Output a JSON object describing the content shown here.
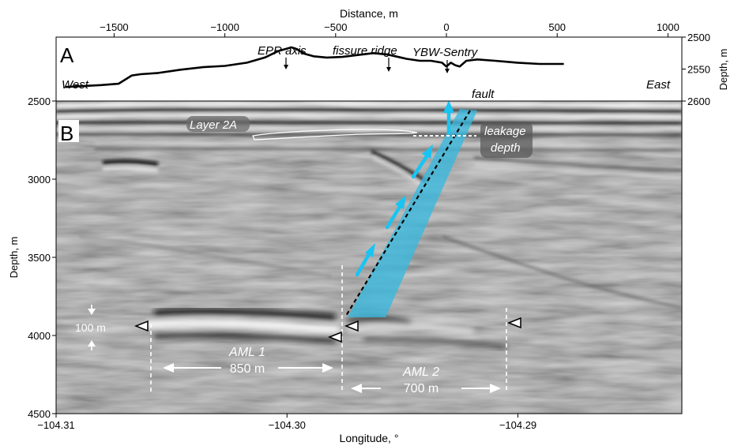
{
  "panel_a": {
    "letter": "A",
    "top_axis_label": "Distance, m",
    "right_axis_label": "Depth, m",
    "distance_ticks": [
      "−1500",
      "−1000",
      "−500",
      "0",
      "500",
      "1000"
    ],
    "distance_tick_values": [
      -1500,
      -1000,
      -500,
      0,
      500,
      1000
    ],
    "depth_ticks": [
      "2500",
      "2550",
      "2600"
    ],
    "depth_tick_values": [
      2500,
      2550,
      2600
    ],
    "west_label": "West",
    "east_label": "East",
    "annotations": {
      "epr_axis": "EPR axis",
      "fissure_ridge": "fissure ridge",
      "ybw_sentry": "YBW-Sentry",
      "fault": "fault"
    },
    "bathymetry_profile": {
      "x_m": [
        -1720,
        -1560,
        -1480,
        -1420,
        -1380,
        -1300,
        -1200,
        -1100,
        -1000,
        -900,
        -820,
        -760,
        -720,
        -700,
        -680,
        -640,
        -600,
        -540,
        -470,
        -400,
        -330,
        -270,
        -230,
        -180,
        -120,
        -70,
        -20,
        0,
        20,
        40,
        60,
        90,
        140,
        220,
        320,
        420,
        530
      ],
      "depth_m": [
        2578,
        2575,
        2573,
        2560,
        2558,
        2556,
        2551,
        2547,
        2545,
        2540,
        2532,
        2522,
        2518,
        2516,
        2518,
        2526,
        2530,
        2532,
        2531,
        2528,
        2525,
        2527,
        2530,
        2534,
        2537,
        2537,
        2540,
        2546,
        2540,
        2544,
        2546,
        2537,
        2535,
        2537,
        2540,
        2542,
        2542
      ]
    }
  },
  "panel_b": {
    "letter": "B",
    "x_axis_label": "Longitude, °",
    "y_axis_label": "Depth, m",
    "x_ticks": [
      "−104.31",
      "−104.30",
      "−104.29"
    ],
    "x_tick_values": [
      -104.31,
      -104.3,
      -104.29
    ],
    "y_ticks": [
      "2500",
      "3000",
      "3500",
      "4000",
      "4500"
    ],
    "y_tick_values": [
      2500,
      3000,
      3500,
      4000,
      4500
    ],
    "x_range": [
      -104.31,
      -104.2829
    ],
    "y_range": [
      2500,
      4500
    ],
    "labels": {
      "layer_2a": "Layer 2A",
      "leakage_depth_1": "leakage",
      "leakage_depth_2": "depth",
      "aml1_name": "AML 1",
      "aml1_width": "850 m",
      "aml2_name": "AML 2",
      "aml2_width": "700 m",
      "thickness": "100 m"
    },
    "colors": {
      "leakage_plume": "#37b8de",
      "arrows": "#19c4f2",
      "background": "#9a9a9a"
    }
  }
}
